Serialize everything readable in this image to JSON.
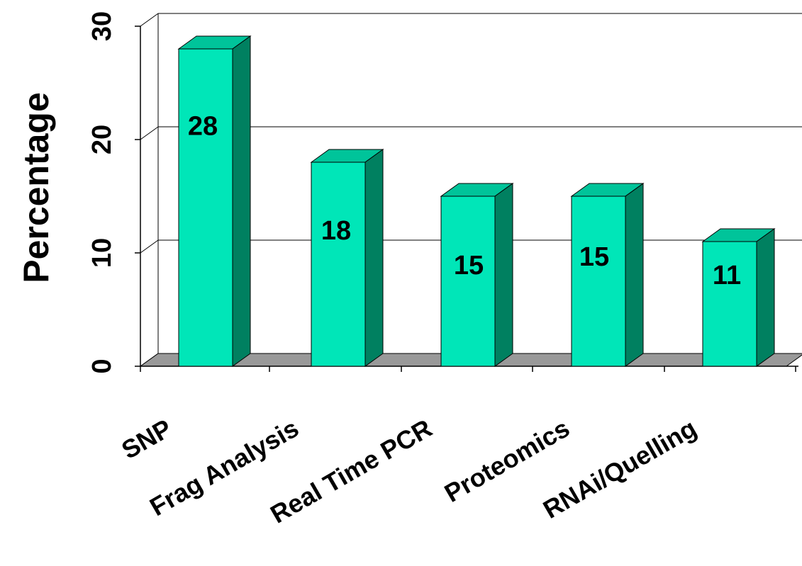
{
  "chart_data": {
    "type": "bar",
    "title": "",
    "xlabel": "",
    "ylabel": "Percentage",
    "categories": [
      "SNP",
      "Frag Analysis",
      "Real Time PCR",
      "Proteomics",
      "RNAi/Quelling"
    ],
    "values": [
      28,
      18,
      15,
      15,
      11
    ],
    "data_labels": [
      "28",
      "18",
      "15",
      "15",
      "11"
    ],
    "ylim": [
      0,
      30
    ],
    "yticks": [
      "0",
      "10",
      "20",
      "30"
    ],
    "grid": true,
    "legend": "none",
    "three_d": true,
    "colors": {
      "bar_front": "#00e6b8",
      "bar_top": "#00c49a",
      "bar_side": "#008060",
      "floor": "#999999",
      "grid": "#000000"
    }
  }
}
